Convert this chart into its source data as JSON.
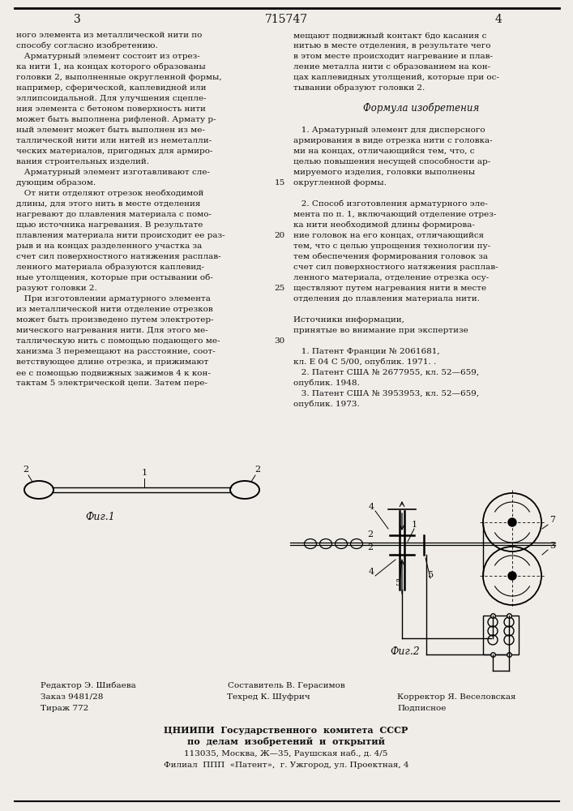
{
  "patent_number": "715747",
  "page_left": "3",
  "page_right": "4",
  "text_left": [
    "ного элемента из металлической нити по",
    "способу согласно изобретению.",
    "   Арматурный элемент состоит из отрез-",
    "ка нити 1, на концах которого образованы",
    "головки 2, выполненные округленной формы,",
    "например, сферической, каплевидной или",
    "эллипсоидальной. Для улучшения сцепле-",
    "ния элемента с бетоном поверхность нити",
    "может быть выполнена рифленой. Армату р-",
    "ный элемент может быть выполнен из ме-",
    "таллической нити или нитей из неметалли-",
    "ческих материалов, пригодных для армиро-",
    "вания строительных изделий.",
    "   Арматурный элемент изготавливают сле-",
    "дующим образом.",
    "   От нити отделяют отрезок необходимой",
    "длины, для этого нить в месте отделения",
    "нагревают до плавления материала с помо-",
    "щью источника нагревания. В результате",
    "плавления материала нити происходит ее раз-",
    "рыв и на концах разделенного участка за",
    "счет сил поверхностного натяжения расплав-",
    "ленного материала образуются каплевид-",
    "ные утолщения, которые при остывании об-",
    "разуют головки 2.",
    "   При изготовлении арматурного элемента",
    "из металлической нити отделение отрезков",
    "может быть произведено путем электротер-",
    "мического нагревания нити. Для этого ме-",
    "таллическую нить с помощью подающего ме-",
    "ханизма 3 перемещают на расстояние, соот-",
    "ветствующее длине отрезка, и прижимают",
    "ее с помощью подвижных зажимов 4 к кон-",
    "тактам 5 электрической цепи. Затем пере-"
  ],
  "line_numbers_left": [
    "",
    "",
    "",
    "",
    "",
    "",
    "",
    "",
    "",
    "",
    "",
    "",
    "",
    "",
    "15",
    "",
    "",
    "",
    "",
    "20",
    "",
    "",
    "",
    "",
    "25",
    "",
    "",
    "",
    "",
    "30",
    "",
    "",
    "",
    ""
  ],
  "text_right": [
    "мещают подвижный контакт 6до касания с",
    "нитью в месте отделения, в результате чего",
    "в этом месте происходит нагревание и плав-",
    "ление металла нити с образованием на кон-",
    "цах каплевидных утолщений, которые при ос-",
    "тывании образуют головки 2.",
    "",
    "Формула изобретения",
    "",
    "   1. Арматурный элемент для дисперсного",
    "армирования в виде отрезка нити с головка-",
    "ми на концах, отличающийся тем, что, с",
    "целью повышения несущей способности ар-",
    "мируемого изделия, головки выполнены",
    "округленной формы.",
    "",
    "   2. Способ изготовления арматурного эле-",
    "мента по п. 1, включающий отделение отрез-",
    "ка нити необходимой длины формирова-",
    "ние головок на его концах, отличающийся",
    "тем, что с целью упрощения технологии пу-",
    "тем обеспечения формирования головок за",
    "счет сил поверхностного натяжения расплав-",
    "ленного материала, отделение отрезка осу-",
    "ществляют путем нагревания нити в месте",
    "отделения до плавления материала нити.",
    "",
    "Источники информации,",
    "принятые во внимание при экспертизе",
    "",
    "   1. Патент Франции № 2061681,",
    "кл. Е 04 С 5/00, опублик. 1971. .",
    "   2. Патент США № 2677955, кл. 52—659,",
    "опублик. 1948.",
    "   3. Патент США № 3953953, кл. 52—659,",
    "опублик. 1973."
  ],
  "fig1_label": "Фиг.1",
  "fig2_label": "Фиг.2",
  "footer_composer": "Составитель В. Герасимов",
  "footer_editor": "Редактор Э. Шибаева",
  "footer_tech": "Техред К. Шуфрич",
  "footer_corrector": "Корректор Я. Веселовская",
  "footer_order": "Заказ 9481/28",
  "footer_circulation": "Тираж 772",
  "footer_subscription": "Подписное",
  "footer_org1": "ЦНИИПИ  Государственного  комитета  СССР",
  "footer_org2": "по  делам  изобретений  и  открытий",
  "footer_addr1": "113035, Москва, Ж—35, Раушская наб., д. 4/5",
  "footer_addr2": "Филиал  ППП  «Патент»,  г. Ужгород, ул. Проектная, 4",
  "bg_color": "#f0ede8",
  "text_color": "#111111"
}
